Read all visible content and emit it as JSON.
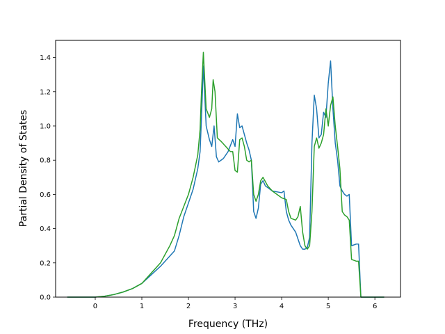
{
  "chart_data": {
    "type": "line",
    "title": "",
    "xlabel": "Frequency (THz)",
    "ylabel": "Partial Density of States",
    "xlim": [
      -0.85,
      6.55
    ],
    "ylim": [
      0,
      1.5
    ],
    "xticks": [
      0,
      1,
      2,
      3,
      4,
      5,
      6
    ],
    "yticks": [
      0.0,
      0.2,
      0.4,
      0.6,
      0.8,
      1.0,
      1.2,
      1.4
    ],
    "xtick_labels": [
      "0",
      "1",
      "2",
      "3",
      "4",
      "5",
      "6"
    ],
    "ytick_labels": [
      "0.0",
      "0.2",
      "0.4",
      "0.6",
      "0.8",
      "1.0",
      "1.2",
      "1.4"
    ],
    "grid": false,
    "legend": "none",
    "series": [
      {
        "color": "#1f77b4",
        "x": [
          -0.6,
          -0.2,
          0,
          0.2,
          0.4,
          0.6,
          0.8,
          1.0,
          1.2,
          1.4,
          1.6,
          1.7,
          1.8,
          1.9,
          2.0,
          2.1,
          2.2,
          2.25,
          2.28,
          2.32,
          2.38,
          2.45,
          2.5,
          2.55,
          2.6,
          2.65,
          2.75,
          2.85,
          2.95,
          3.0,
          3.05,
          3.1,
          3.15,
          3.2,
          3.25,
          3.3,
          3.35,
          3.4,
          3.45,
          3.5,
          3.55,
          3.6,
          3.65,
          3.7,
          3.8,
          4.0,
          4.05,
          4.1,
          4.15,
          4.2,
          4.3,
          4.4,
          4.45,
          4.5,
          4.55,
          4.6,
          4.65,
          4.7,
          4.75,
          4.8,
          4.85,
          4.9,
          4.95,
          5.0,
          5.05,
          5.1,
          5.15,
          5.2,
          5.25,
          5.3,
          5.35,
          5.4,
          5.45,
          5.5,
          5.6,
          5.65,
          5.7,
          5.8,
          6.0,
          6.2
        ],
        "y": [
          0.0,
          0.0,
          0.0,
          0.005,
          0.015,
          0.03,
          0.05,
          0.08,
          0.13,
          0.18,
          0.24,
          0.27,
          0.36,
          0.47,
          0.55,
          0.63,
          0.75,
          0.85,
          1.05,
          1.35,
          1.0,
          0.92,
          0.88,
          1.0,
          0.82,
          0.79,
          0.81,
          0.85,
          0.92,
          0.88,
          1.07,
          0.99,
          1.0,
          0.95,
          0.9,
          0.86,
          0.8,
          0.5,
          0.46,
          0.52,
          0.66,
          0.68,
          0.65,
          0.64,
          0.62,
          0.61,
          0.62,
          0.5,
          0.45,
          0.42,
          0.38,
          0.3,
          0.28,
          0.28,
          0.29,
          0.35,
          0.9,
          1.18,
          1.1,
          0.93,
          0.95,
          1.08,
          1.05,
          1.25,
          1.38,
          1.1,
          0.9,
          0.8,
          0.65,
          0.62,
          0.6,
          0.59,
          0.6,
          0.3,
          0.31,
          0.31,
          0.0,
          0.0,
          0.0,
          0.0
        ]
      },
      {
        "color": "#2ca02c",
        "x": [
          -0.6,
          -0.2,
          0,
          0.2,
          0.4,
          0.6,
          0.8,
          1.0,
          1.2,
          1.4,
          1.5,
          1.6,
          1.7,
          1.8,
          1.9,
          2.0,
          2.1,
          2.2,
          2.25,
          2.28,
          2.32,
          2.38,
          2.45,
          2.5,
          2.53,
          2.57,
          2.62,
          2.7,
          2.8,
          2.9,
          2.95,
          3.0,
          3.05,
          3.1,
          3.15,
          3.2,
          3.25,
          3.3,
          3.35,
          3.4,
          3.45,
          3.5,
          3.55,
          3.6,
          3.7,
          3.8,
          3.9,
          4.0,
          4.1,
          4.15,
          4.2,
          4.3,
          4.35,
          4.4,
          4.45,
          4.5,
          4.55,
          4.6,
          4.65,
          4.7,
          4.75,
          4.8,
          4.85,
          4.9,
          4.95,
          5.0,
          5.05,
          5.1,
          5.15,
          5.2,
          5.25,
          5.3,
          5.35,
          5.4,
          5.45,
          5.5,
          5.6,
          5.65,
          5.7,
          5.8,
          6.0,
          6.2
        ],
        "y": [
          0.0,
          0.0,
          0.0,
          0.005,
          0.015,
          0.03,
          0.05,
          0.08,
          0.14,
          0.2,
          0.25,
          0.3,
          0.36,
          0.46,
          0.53,
          0.6,
          0.7,
          0.83,
          0.98,
          1.2,
          1.43,
          1.1,
          1.05,
          1.1,
          1.27,
          1.2,
          0.93,
          0.91,
          0.88,
          0.85,
          0.85,
          0.74,
          0.73,
          0.92,
          0.93,
          0.88,
          0.8,
          0.79,
          0.8,
          0.6,
          0.56,
          0.6,
          0.68,
          0.7,
          0.65,
          0.62,
          0.6,
          0.58,
          0.57,
          0.5,
          0.46,
          0.45,
          0.47,
          0.53,
          0.38,
          0.3,
          0.28,
          0.3,
          0.5,
          0.88,
          0.93,
          0.87,
          0.9,
          0.95,
          1.1,
          1.0,
          1.12,
          1.17,
          1.0,
          0.88,
          0.75,
          0.5,
          0.48,
          0.47,
          0.45,
          0.22,
          0.21,
          0.21,
          0.0,
          0.0,
          0.0,
          0.0
        ]
      }
    ]
  }
}
